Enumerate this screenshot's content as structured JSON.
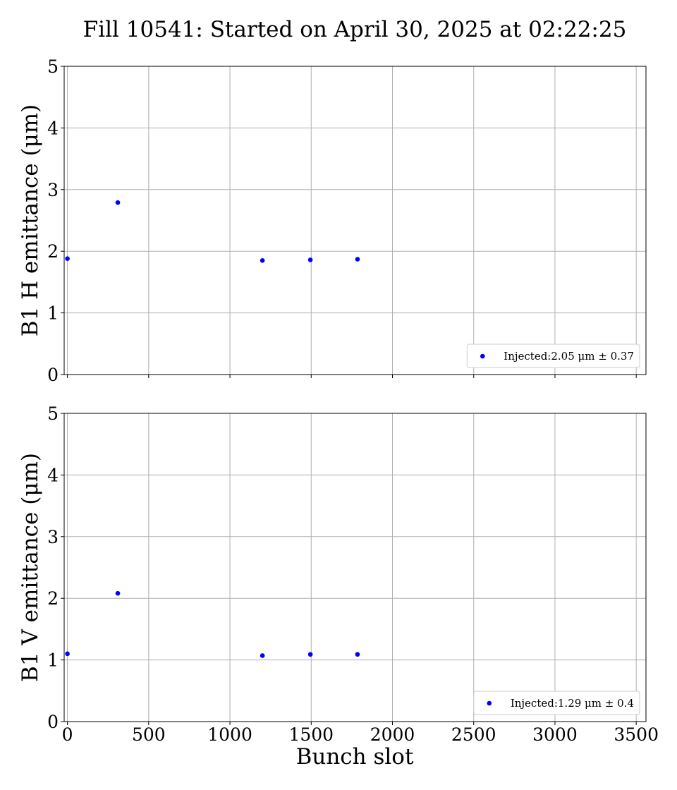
{
  "chart_data": {
    "title": "Fill 10541: Started on April 30, 2025 at 02:22:25",
    "xlabel": "Bunch slot",
    "xlim": [
      -20,
      3560
    ],
    "xticks": [
      0,
      500,
      1000,
      1500,
      2000,
      2500,
      3000,
      3500
    ],
    "grid": true,
    "panels": [
      {
        "type": "scatter",
        "ylabel": "B1 H emittance (μm)",
        "ylim": [
          0,
          5
        ],
        "yticks": [
          0,
          1,
          2,
          3,
          4,
          5
        ],
        "legend_position": "lower-right",
        "series": [
          {
            "name": "Injected:2.05 μm ± 0.37",
            "color": "#0000ff",
            "x": [
              0,
              310,
              1200,
              1495,
              1785
            ],
            "y": [
              1.88,
              2.79,
              1.85,
              1.86,
              1.87
            ]
          }
        ]
      },
      {
        "type": "scatter",
        "ylabel": "B1 V emittance (μm)",
        "ylim": [
          0,
          5
        ],
        "yticks": [
          0,
          1,
          2,
          3,
          4,
          5
        ],
        "legend_position": "lower-right",
        "series": [
          {
            "name": "Injected:1.29 μm ± 0.4",
            "color": "#0000ff",
            "x": [
              0,
              310,
              1200,
              1495,
              1785
            ],
            "y": [
              1.1,
              2.08,
              1.07,
              1.09,
              1.09
            ]
          }
        ]
      }
    ]
  }
}
